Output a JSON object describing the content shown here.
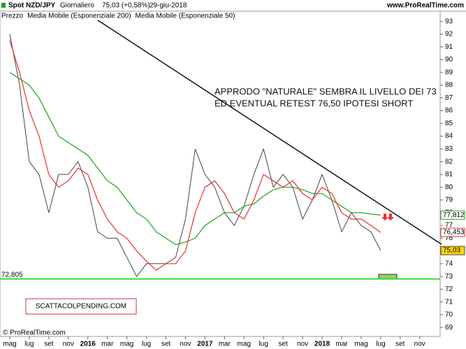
{
  "header": {
    "symbol": "Spot NZD/JPY",
    "period": "Giornaliero",
    "last": "75,03 (+0,58%)",
    "date": "29-giu-2018",
    "site": "www.ProRealTime.com"
  },
  "chart_data": {
    "type": "line",
    "categories": [
      "mag",
      null,
      "lug",
      null,
      "set",
      null,
      "nov",
      null,
      "2016",
      null,
      "mar",
      null,
      "mag",
      null,
      "lug",
      null,
      "set",
      null,
      "nov",
      null,
      "2017",
      null,
      "mar",
      null,
      "mag",
      null,
      "lug",
      null,
      "set",
      null,
      "nov",
      null,
      "2018",
      null,
      "mar",
      null,
      "mag",
      null,
      "lug",
      null,
      "set",
      null,
      "nov",
      null
    ],
    "series": [
      {
        "name": "Prezzo",
        "color": "#444444",
        "values": [
          92,
          88,
          82,
          81,
          78,
          81,
          81,
          82,
          80,
          76.5,
          76,
          76,
          74.5,
          73,
          74,
          74,
          74,
          74.5,
          77.5,
          83,
          81,
          80,
          78,
          77,
          78.5,
          81,
          83,
          80,
          81,
          80,
          77.5,
          79,
          81,
          79,
          76.5,
          78,
          77,
          76.5,
          75.03,
          null,
          null,
          null,
          null,
          null
        ],
        "last_label": "75,03"
      },
      {
        "name": "Media Mobile (Esponenziale 200)",
        "color": "#1fa01f",
        "values": [
          89,
          88.5,
          88,
          87,
          85.5,
          84,
          83.5,
          83,
          82.5,
          81.5,
          80.5,
          80,
          79,
          78,
          77.5,
          76.5,
          76,
          75.5,
          75.7,
          76,
          77,
          77.5,
          78,
          78,
          78.5,
          78.7,
          79.3,
          79.8,
          80,
          80,
          79.8,
          79.5,
          79.5,
          79,
          78.5,
          78,
          78,
          77.9,
          77.812,
          null,
          null,
          null,
          null,
          null
        ],
        "last_label": "77,812"
      },
      {
        "name": "Media Mobile (Esponenziale 50)",
        "color": "#e83030",
        "values": [
          91.5,
          89,
          86,
          84,
          81,
          80,
          80.5,
          81.5,
          81,
          79,
          77.5,
          76.5,
          76,
          75,
          74.2,
          73.5,
          74,
          74,
          75,
          78,
          80,
          80.5,
          79.5,
          78,
          77.5,
          79,
          81,
          80.5,
          80,
          80.5,
          79.5,
          79,
          80,
          79.5,
          78,
          77.5,
          77.5,
          77,
          76.453,
          null,
          null,
          null,
          null,
          null
        ],
        "last_label": "76,453"
      }
    ],
    "ylim": [
      68.3,
      93.8
    ],
    "yticks": [
      69,
      70,
      71,
      72,
      73,
      74,
      75,
      76,
      77,
      78,
      79,
      80,
      81,
      82,
      83,
      84,
      85,
      86,
      87,
      88,
      89,
      90,
      91,
      92,
      93
    ],
    "support": {
      "value": 72.805,
      "label": "72,805"
    },
    "annotation": [
      "APPRODO \"NATURALE\" SEMBRA IL LIVELLO DEI 73",
      "ED EVENTUAL RETEST 76,50 IPOTESI SHORT"
    ],
    "watermark": "SCATTACOLPENDING.COM",
    "copyright": "© ProRealTime.com"
  }
}
